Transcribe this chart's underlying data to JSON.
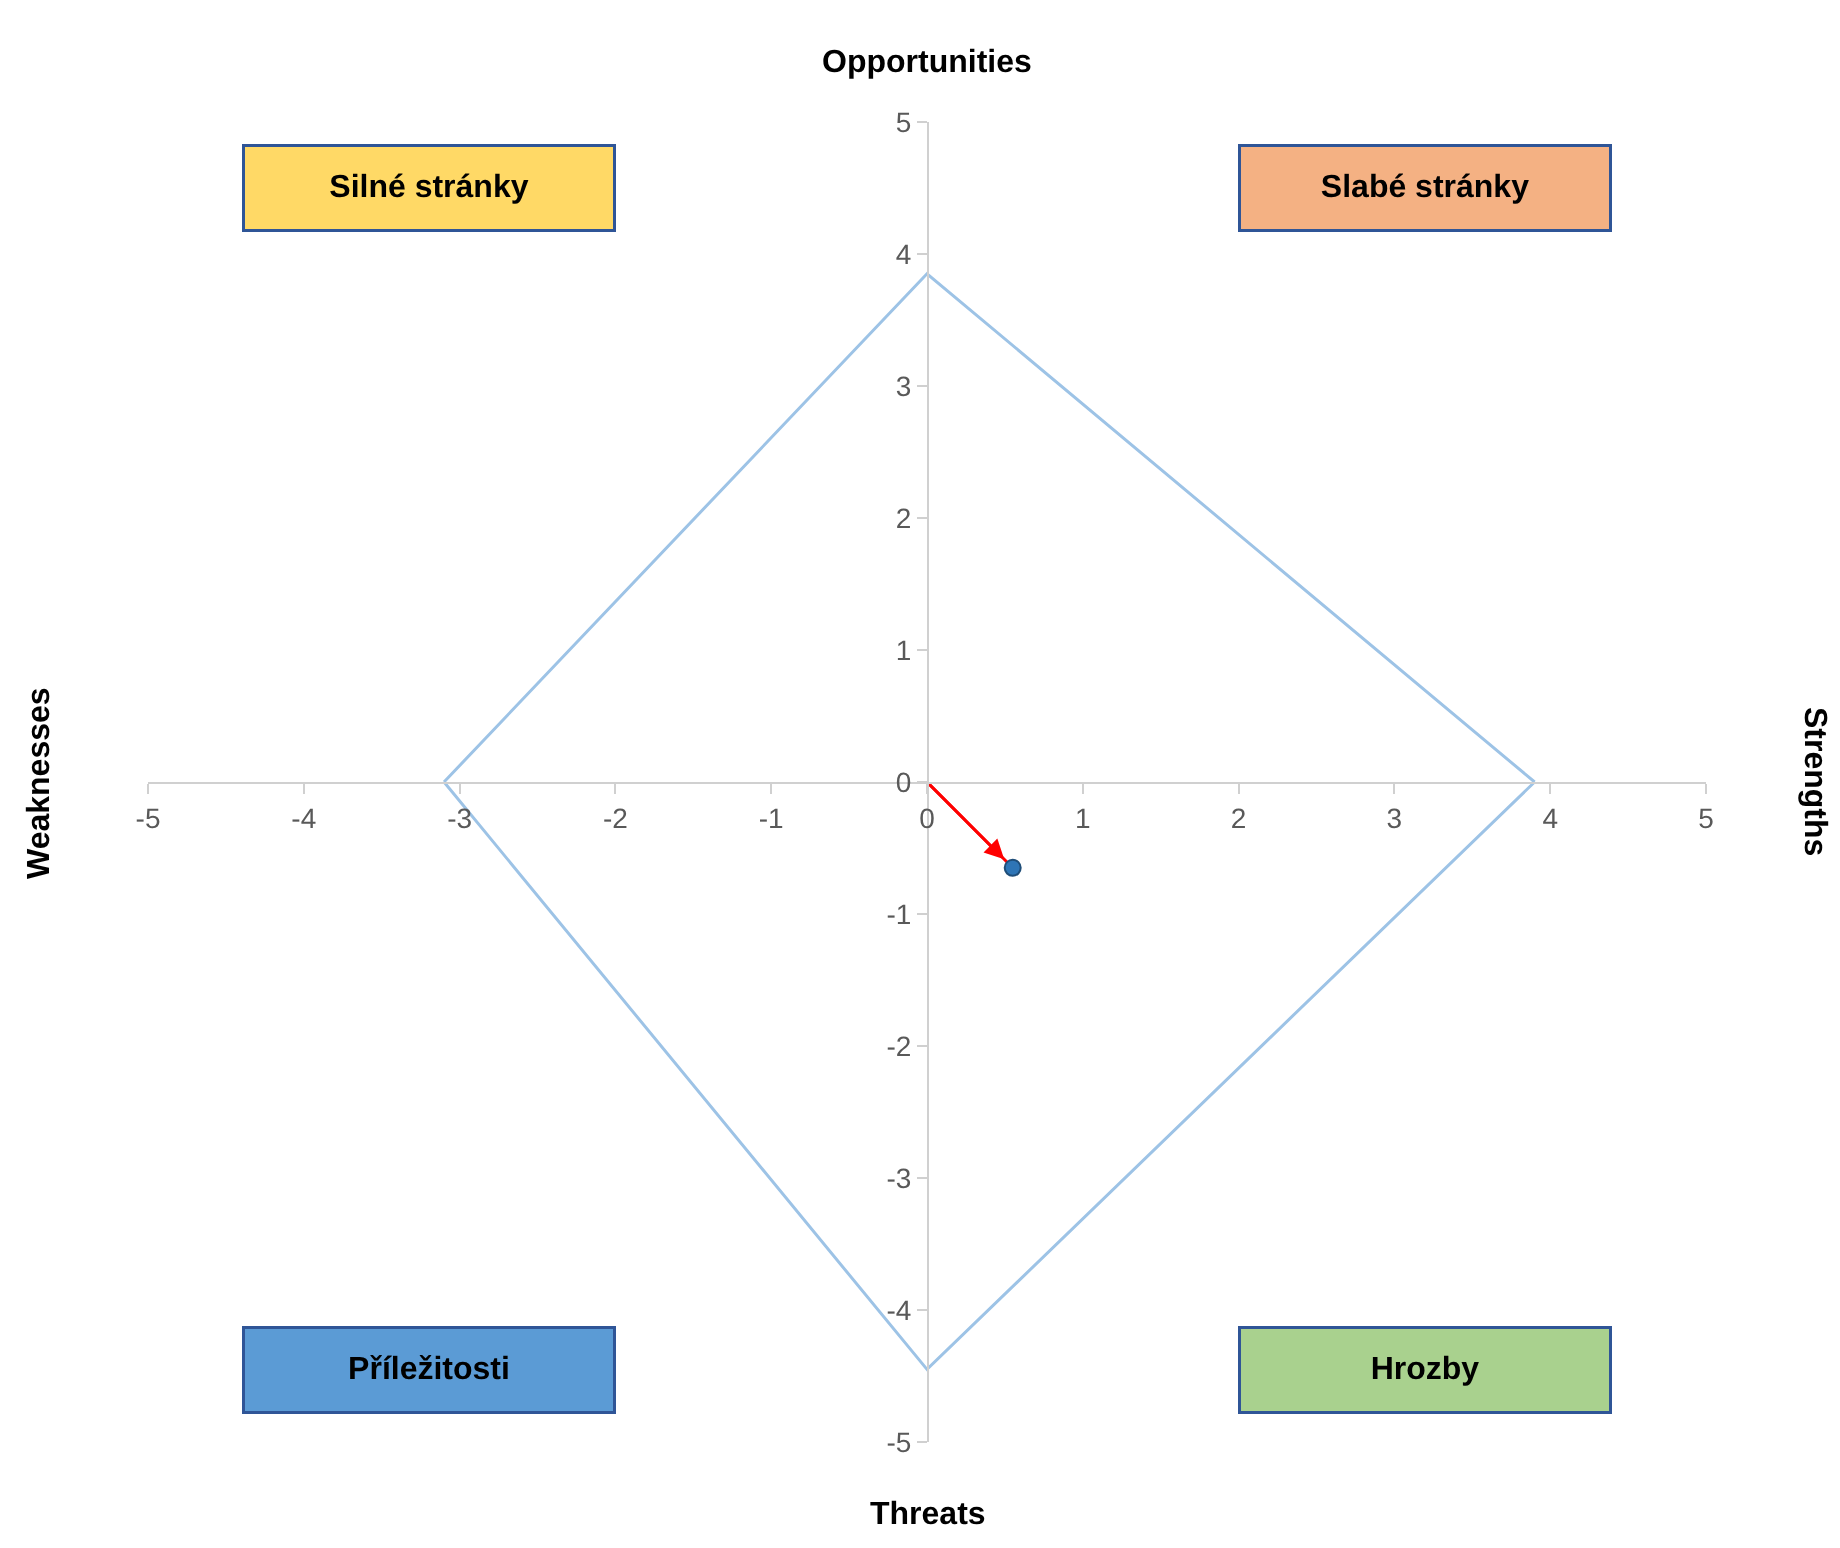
{
  "chart_data": {
    "type": "scatter",
    "x2label": "Opportunities",
    "xlabel": "Threats",
    "ylabel": "Weaknesses",
    "y2label": "Strengths",
    "annotations": [
      "Silné stránky",
      "Slabé stránky",
      "Příležitosti",
      "Hrozby"
    ],
    "series": [
      {
        "type": "line",
        "color": "#9dc3e6",
        "x": [
          -3.1,
          0,
          3.9
        ],
        "values": [
          0,
          3.85,
          0
        ],
        "marker": "none"
      },
      {
        "type": "line",
        "color": "#9dc3e6",
        "x": [
          -3.1,
          0,
          3.9
        ],
        "values": [
          0,
          -4.45,
          0
        ],
        "marker": "none"
      },
      {
        "type": "line",
        "color": "#ff0000",
        "x": [
          0,
          0.55
        ],
        "values": [
          0,
          -0.65
        ],
        "marker": "none"
      },
      {
        "color": "#2e75b6",
        "x": [
          0.55
        ],
        "values": [
          -0.65
        ],
        "marker": "circle"
      }
    ],
    "xlim": [
      -5,
      5
    ],
    "ylim": [
      -5,
      5
    ],
    "xticks": [
      -5,
      -4,
      -3,
      -2,
      -1,
      0,
      1,
      2,
      3,
      4,
      5
    ],
    "yticks": [
      -5,
      -4,
      -3,
      -2,
      -1,
      0,
      1,
      2,
      3,
      4,
      5
    ]
  }
}
